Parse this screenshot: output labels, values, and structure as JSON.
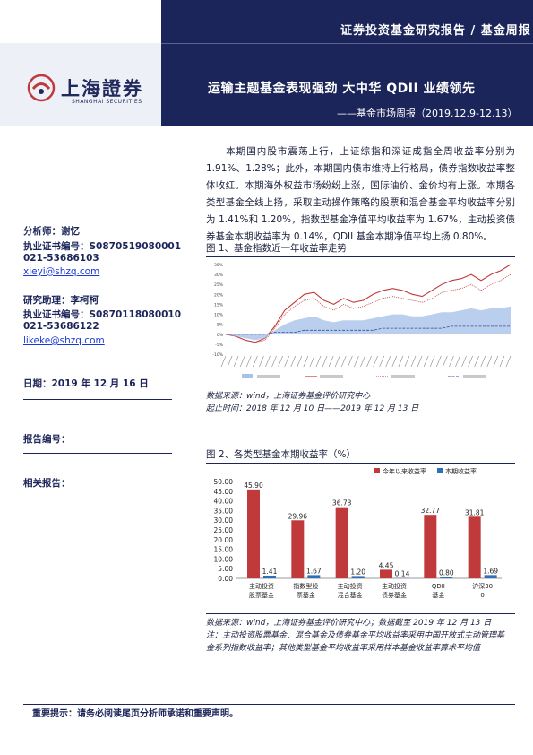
{
  "header": {
    "top_label": "证券投资基金研究报告 / 基金周报",
    "title": "运输主题基金表现强劲 大中华 QDII 业绩领先",
    "subtitle": "——基金市场周报（2019.12.9-12.13）",
    "logo_cn": "上海證券",
    "logo_en": "SHANGHAI SECURITIES"
  },
  "left": {
    "analyst": "分析师：谢忆",
    "analyst_cert": "执业证书编号：S0870519080001",
    "analyst_phone": "021-53686103",
    "analyst_email": "xieyi@shzq.com",
    "assistant": "研究助理：李柯柯",
    "assistant_cert": "执业证书编号：S0870118080010",
    "assistant_phone": "021-53686122",
    "assistant_email": "likeke@shzq.com",
    "date": "日期：2019 年 12 月 16 日",
    "report_no": "报告编号：",
    "related": "相关报告："
  },
  "summary": "本期国内股市震荡上行，上证综指和深证成指全周收益率分别为 1.91%、1.28%；此外，本期国内债市维持上行格局，债券指数收益率整体收红。本期海外权益市场纷纷上涨，国际油价、金价均有上涨。本期各类型基金全线上扬，采取主动操作策略的股票和混合基金平均收益率分别为 1.41%和 1.20%，指数型基金净值平均收益率为 1.67%，主动投资债券基金本期收益率为 0.14%，QDII 基金本期净值平均上扬 0.80%。",
  "fig1": {
    "title": "图 1、基金指数近一年收益率走势",
    "source": "数据来源：wind，上海证券基金评价研究中心",
    "period": "起止时间：2018 年 12 月 10 日——2019 年 12 月 13 日"
  },
  "fig2": {
    "title": "图 2、各类型基金本期收益率（%）",
    "source": "数据来源：wind，上海证券基金评价研究中心；数据截至 2019 年 12 月 13 日",
    "note1": "注：主动投资股票基金、混合基金及债券基金平均收益率采用中国开放式主动管理基",
    "note2": "金系列指数收益率；其他类型基金平均收益率采用样本基金收益率算术平均值"
  },
  "footer": "重要提示：请务必阅读尾页分析师承诺和重要声明。",
  "colors": {
    "navy": "#1c2559",
    "bar_red": "#c0393b",
    "bar_blue": "#2f6fb7",
    "area_blue": "#a9c2e8"
  },
  "chart_data": [
    {
      "type": "line",
      "title": "",
      "y_ticks": [
        "35%",
        "30%",
        "25%",
        "20%",
        "15%",
        "10%",
        "5%",
        "0%",
        "-5%",
        "-10%"
      ],
      "ylim": [
        -10,
        35
      ],
      "x_range": [
        "2018-12-10",
        "2019-12-13"
      ],
      "legend_position": "bottom",
      "series": [
        {
          "style": "solid-red",
          "values": [
            0,
            -1,
            -3,
            -4,
            -2,
            4,
            12,
            16,
            20,
            21,
            17,
            15,
            18,
            16,
            17,
            20,
            22,
            23,
            22,
            20,
            19,
            22,
            25,
            27,
            28,
            30,
            27,
            30,
            32,
            35
          ]
        },
        {
          "style": "dotted-red",
          "values": [
            0,
            -1,
            -3,
            -4,
            -3,
            3,
            10,
            14,
            17,
            18,
            14,
            12,
            15,
            13,
            14,
            16,
            18,
            19,
            18,
            17,
            16,
            18,
            21,
            22,
            23,
            25,
            22,
            25,
            27,
            30
          ]
        },
        {
          "style": "area-blue",
          "values": [
            0,
            -1,
            -2,
            -3,
            -2,
            2,
            5,
            7,
            8,
            9,
            7,
            6,
            7,
            7,
            7,
            8,
            9,
            10,
            10,
            9,
            9,
            10,
            11,
            11,
            12,
            13,
            12,
            13,
            13,
            14
          ]
        },
        {
          "style": "dashed-blue",
          "values": [
            0,
            0,
            0,
            0,
            0,
            1,
            1,
            1,
            2,
            2,
            2,
            2,
            2,
            2,
            2,
            2,
            3,
            3,
            3,
            3,
            3,
            3,
            3,
            4,
            4,
            4,
            4,
            4,
            4,
            4
          ]
        }
      ]
    },
    {
      "type": "bar",
      "title": "",
      "ylim": [
        0,
        50
      ],
      "y_ticks": [
        "50.00",
        "45.00",
        "40.00",
        "35.00",
        "30.00",
        "25.00",
        "20.00",
        "15.00",
        "10.00",
        "5.00",
        "0.00"
      ],
      "legend_position": "top-right",
      "categories": [
        "主动投资股票基金",
        "指数型股票基金",
        "主动投资混合基金",
        "主动投资债券基金",
        "QDII基金",
        "沪深300"
      ],
      "series": [
        {
          "name": "今年以来收益率",
          "values": [
            45.9,
            29.96,
            36.73,
            4.45,
            32.77,
            31.81
          ]
        },
        {
          "name": "本期收益率",
          "values": [
            1.41,
            1.67,
            1.2,
            0.14,
            0.8,
            1.69
          ]
        }
      ]
    }
  ]
}
